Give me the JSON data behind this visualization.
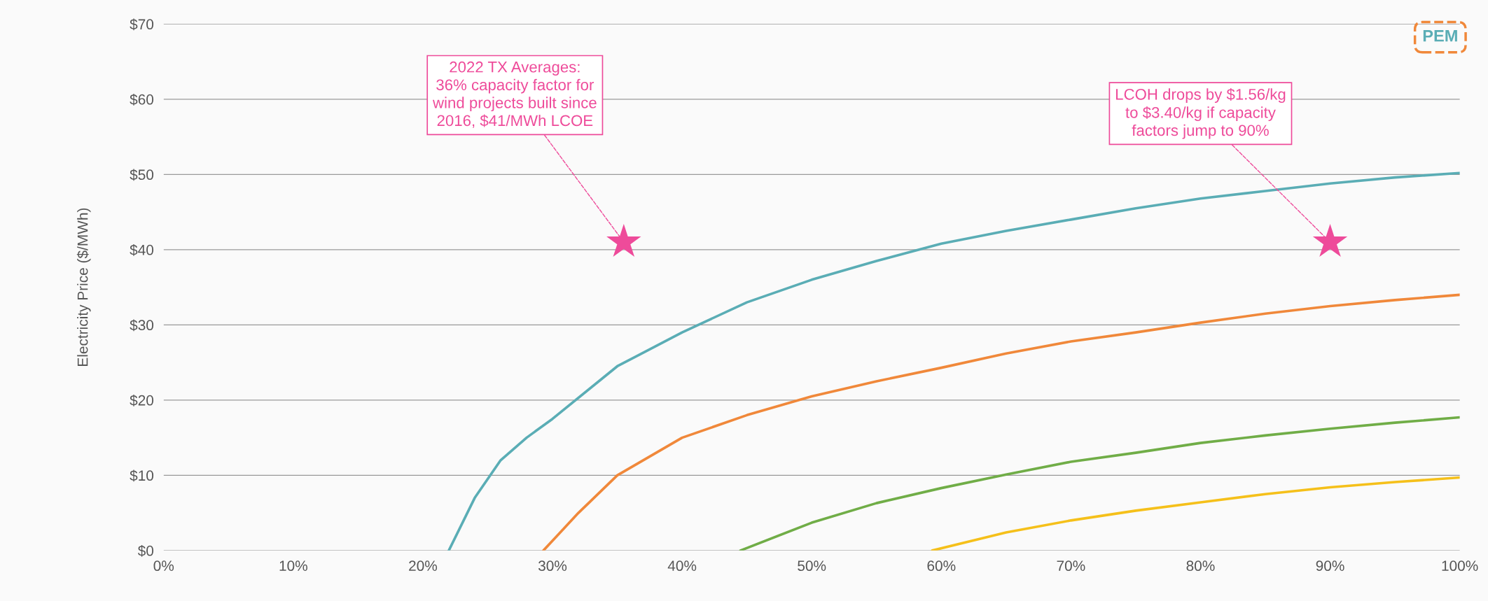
{
  "chart_data": {
    "type": "line",
    "ylabel": "Electricity Price ($/MWh)",
    "xlim": [
      0,
      100
    ],
    "ylim": [
      0,
      70
    ],
    "xticks": [
      {
        "value": 0,
        "label": "0%"
      },
      {
        "value": 10,
        "label": "10%"
      },
      {
        "value": 20,
        "label": "20%"
      },
      {
        "value": 30,
        "label": "30%"
      },
      {
        "value": 40,
        "label": "40%"
      },
      {
        "value": 50,
        "label": "50%"
      },
      {
        "value": 60,
        "label": "60%"
      },
      {
        "value": 70,
        "label": "70%"
      },
      {
        "value": 80,
        "label": "80%"
      },
      {
        "value": 90,
        "label": "90%"
      },
      {
        "value": 100,
        "label": "100%"
      }
    ],
    "yticks": [
      {
        "value": 0,
        "label": "$0"
      },
      {
        "value": 10,
        "label": "$10"
      },
      {
        "value": 20,
        "label": "$20"
      },
      {
        "value": 30,
        "label": "$30"
      },
      {
        "value": 40,
        "label": "$40"
      },
      {
        "value": 50,
        "label": "$50"
      },
      {
        "value": 60,
        "label": "$60"
      },
      {
        "value": 70,
        "label": "$70"
      }
    ],
    "grid": "y",
    "legend": false,
    "marker": "none",
    "line_style": "solid",
    "series": [
      {
        "color": "#5aadb5",
        "x": [
          22,
          24,
          26,
          28,
          30,
          35,
          40,
          45,
          50,
          55,
          60,
          65,
          70,
          75,
          80,
          85,
          90,
          95,
          100
        ],
        "values": [
          0,
          7,
          12,
          15,
          17.5,
          24.5,
          29,
          33,
          36,
          38.5,
          40.8,
          42.5,
          44,
          45.5,
          46.8,
          47.8,
          48.8,
          49.6,
          50.2
        ]
      },
      {
        "color": "#f0883a",
        "x": [
          29.3,
          32,
          35,
          40,
          45,
          50,
          55,
          60,
          65,
          70,
          75,
          80,
          85,
          90,
          95,
          100
        ],
        "values": [
          0,
          5,
          10,
          15,
          18,
          20.5,
          22.5,
          24.3,
          26.2,
          27.8,
          29,
          30.3,
          31.5,
          32.5,
          33.3,
          34
        ]
      },
      {
        "color": "#70ad47",
        "x": [
          44.5,
          50,
          55,
          60,
          65,
          70,
          75,
          80,
          85,
          90,
          95,
          100
        ],
        "values": [
          0,
          3.7,
          6.3,
          8.3,
          10.1,
          11.8,
          13,
          14.3,
          15.3,
          16.2,
          17,
          17.7
        ]
      },
      {
        "color": "#f5c01a",
        "x": [
          59.3,
          65,
          70,
          75,
          80,
          85,
          90,
          95,
          100
        ],
        "values": [
          0,
          2.4,
          4,
          5.3,
          6.4,
          7.5,
          8.4,
          9.1,
          9.7
        ]
      },
      {
        "type": "scatter",
        "marker": "star",
        "color": "#ee4b9a",
        "x": [
          35.5,
          90
        ],
        "values": [
          41,
          41
        ]
      }
    ],
    "annotations": [
      {
        "text": "2022 TX Averages:\n36% capacity factor for\nwind projects built since\n2016, $41/MWh LCOE",
        "x": 35.5,
        "y": 41
      },
      {
        "text": "LCOH drops by $1.56/kg\nto $3.40/kg if capacity\nfactors jump to 90%",
        "x": 90,
        "y": 41
      },
      "PEM"
    ]
  }
}
